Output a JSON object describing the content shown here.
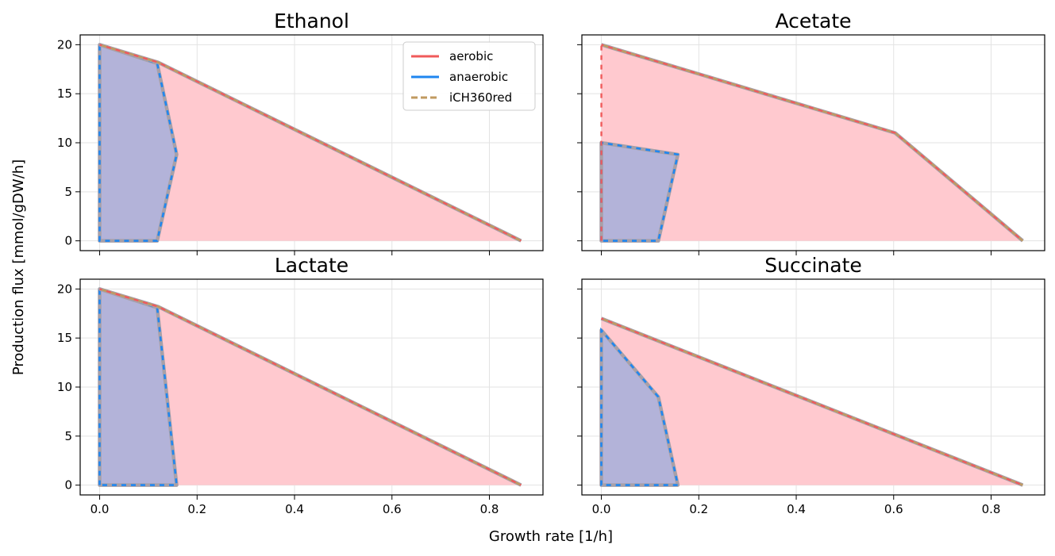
{
  "figure": {
    "xlabel": "Growth rate [1/h]",
    "ylabel": "Production flux [mmol/gDW/h]"
  },
  "legend": {
    "placement": "top-right of first panel",
    "entries": [
      {
        "label": "aerobic",
        "color": "#f05a5a",
        "style": "solid"
      },
      {
        "label": "anaerobic",
        "color": "#1f86f0",
        "style": "solid"
      },
      {
        "label": "iCH360red",
        "color": "#c09a60",
        "style": "dashed"
      }
    ]
  },
  "colors": {
    "aerobic_fill": "#ffc9cf",
    "anaerobic_fill": "#b3b3d9",
    "boundary_gray": "#a8a0a8"
  },
  "chart_data": [
    {
      "type": "area",
      "title": "Ethanol",
      "xlim": [
        -0.04,
        0.91
      ],
      "ylim": [
        -1,
        21
      ],
      "xticks": [
        0.0,
        0.2,
        0.4,
        0.6,
        0.8
      ],
      "xtick_labels": [],
      "yticks": [
        0,
        5,
        10,
        15,
        20
      ],
      "ytick_labels": [
        "0",
        "5",
        "10",
        "15",
        "20"
      ],
      "grid": true,
      "series": [
        {
          "name": "aerobic",
          "x": [
            0,
            0,
            0.12,
            0.865
          ],
          "y": [
            0,
            20,
            18.2,
            0
          ]
        },
        {
          "name": "anaerobic",
          "x": [
            0,
            0,
            0.118,
            0.158,
            0.118
          ],
          "y": [
            0,
            20,
            18.1,
            8.8,
            0
          ]
        }
      ]
    },
    {
      "type": "area",
      "title": "Acetate",
      "xlim": [
        -0.04,
        0.91
      ],
      "ylim": [
        -1,
        21
      ],
      "xticks": [
        0.0,
        0.2,
        0.4,
        0.6,
        0.8
      ],
      "xtick_labels": [],
      "yticks": [
        0,
        5,
        10,
        15,
        20
      ],
      "ytick_labels": [],
      "grid": true,
      "series": [
        {
          "name": "aerobic",
          "x": [
            0,
            0,
            0.603,
            0.865
          ],
          "y": [
            0,
            20,
            11,
            0
          ]
        },
        {
          "name": "anaerobic",
          "x": [
            0,
            0,
            0.157,
            0.117
          ],
          "y": [
            0,
            10,
            8.8,
            0
          ]
        }
      ]
    },
    {
      "type": "area",
      "title": "Lactate",
      "xlim": [
        -0.04,
        0.91
      ],
      "ylim": [
        -1,
        21
      ],
      "xticks": [
        0.0,
        0.2,
        0.4,
        0.6,
        0.8
      ],
      "xtick_labels": [
        "0.0",
        "0.2",
        "0.4",
        "0.6",
        "0.8"
      ],
      "yticks": [
        0,
        5,
        10,
        15,
        20
      ],
      "ytick_labels": [
        "0",
        "5",
        "10",
        "15",
        "20"
      ],
      "grid": true,
      "series": [
        {
          "name": "aerobic",
          "x": [
            0,
            0,
            0.12,
            0.865
          ],
          "y": [
            0,
            20,
            18.2,
            0
          ]
        },
        {
          "name": "anaerobic",
          "x": [
            0,
            0,
            0.118,
            0.158
          ],
          "y": [
            0,
            20,
            18.1,
            0
          ]
        }
      ]
    },
    {
      "type": "area",
      "title": "Succinate",
      "xlim": [
        -0.04,
        0.91
      ],
      "ylim": [
        -1,
        21
      ],
      "xticks": [
        0.0,
        0.2,
        0.4,
        0.6,
        0.8
      ],
      "xtick_labels": [
        "0.0",
        "0.2",
        "0.4",
        "0.6",
        "0.8"
      ],
      "yticks": [
        0,
        5,
        10,
        15,
        20
      ],
      "ytick_labels": [],
      "grid": true,
      "series": [
        {
          "name": "aerobic",
          "x": [
            0,
            0,
            0.865
          ],
          "y": [
            0,
            17,
            0
          ]
        },
        {
          "name": "anaerobic",
          "x": [
            0,
            0,
            0.117,
            0.157
          ],
          "y": [
            0,
            15.8,
            9,
            0
          ]
        }
      ]
    }
  ]
}
